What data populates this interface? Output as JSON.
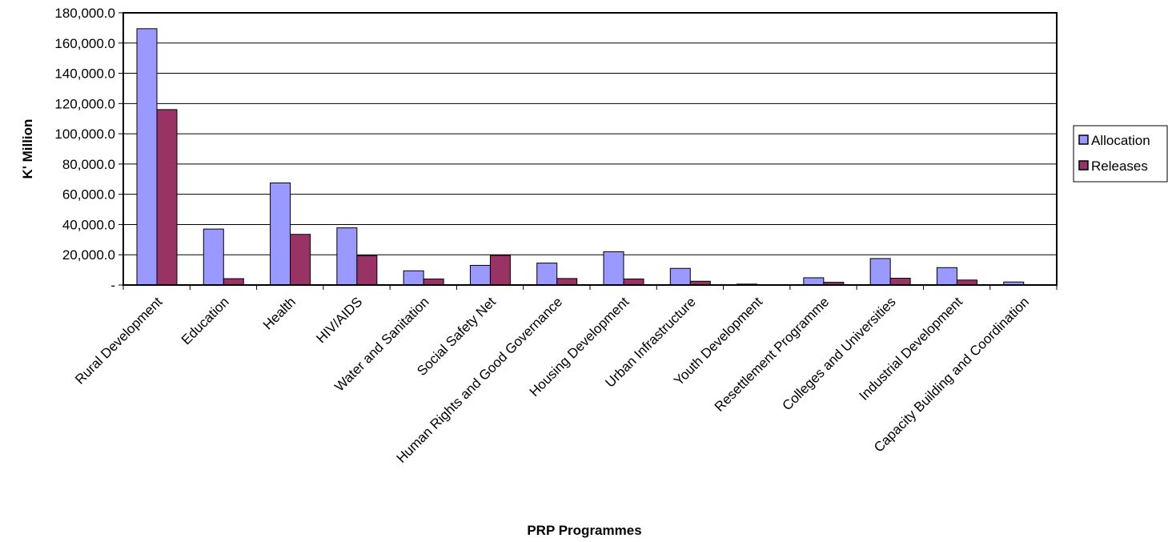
{
  "chart_data": {
    "type": "bar",
    "title": "",
    "xlabel": "PRP Programmes",
    "ylabel": "K' Million",
    "ylim": [
      0,
      180000
    ],
    "y_tick_labels": [
      "-",
      "20,000.0",
      "40,000.0",
      "60,000.0",
      "80,000.0",
      "100,000.0",
      "120,000.0",
      "140,000.0",
      "160,000.0",
      "180,000.0"
    ],
    "grid": true,
    "legend_position": "right",
    "categories": [
      "Rural Development",
      "Education",
      "Health",
      "HIV/AIDS",
      "Water and Sanitation",
      "Social Safety Net",
      "Human Rights and Good Governance",
      "Housing Development",
      "Urban Infrastructure",
      "Youth Development",
      "Resettlement Programme",
      "Colleges and Universities",
      "Industrial Development",
      "Capacity Building and Coordination"
    ],
    "series": [
      {
        "name": "Allocation",
        "color": "#9999ff",
        "values": [
          169500,
          37000,
          67500,
          37800,
          9400,
          13000,
          14500,
          22000,
          11000,
          600,
          4800,
          17500,
          11500,
          2000
        ]
      },
      {
        "name": "Releases",
        "color": "#993366",
        "values": [
          116000,
          4200,
          33500,
          19400,
          4000,
          19600,
          4300,
          4000,
          2500,
          200,
          1800,
          4500,
          3300,
          300
        ]
      }
    ]
  }
}
